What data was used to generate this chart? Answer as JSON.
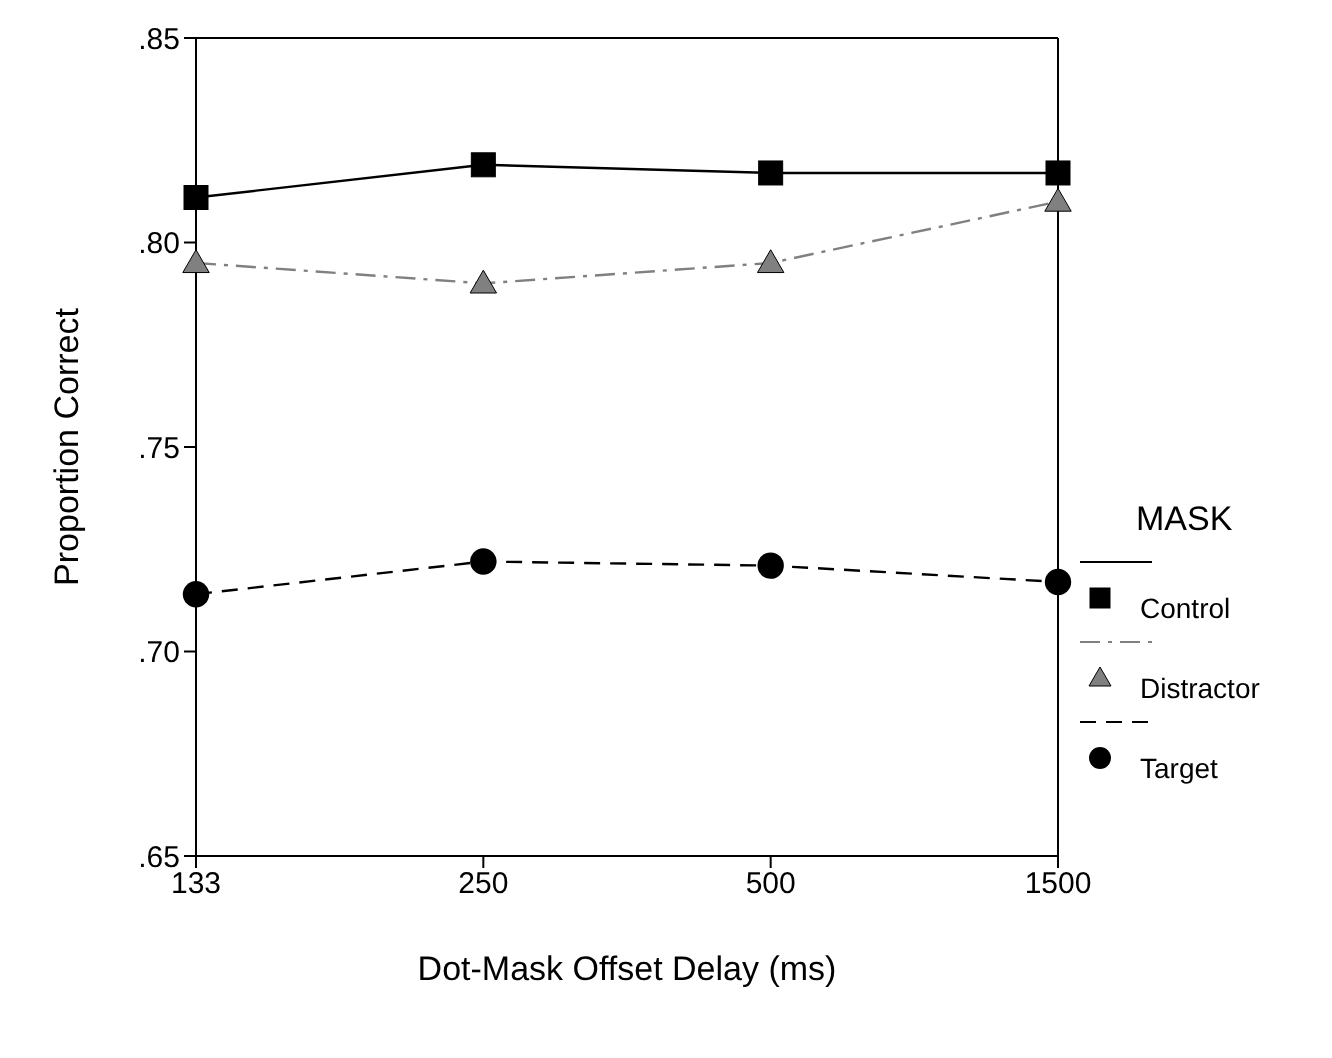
{
  "chart_data": {
    "type": "line",
    "xlabel": "Dot-Mask Offset Delay (ms)",
    "ylabel": "Proportion Correct",
    "legend_title": "MASK",
    "legend": "right",
    "grid": false,
    "categories": [
      "133",
      "250",
      "500",
      "1500"
    ],
    "ylim": [
      0.65,
      0.85
    ],
    "yticks": [
      {
        "value": 0.65,
        "label": ".65"
      },
      {
        "value": 0.7,
        "label": ".70"
      },
      {
        "value": 0.75,
        "label": ".75"
      },
      {
        "value": 0.8,
        "label": ".80"
      },
      {
        "value": 0.85,
        "label": ".85"
      }
    ],
    "series": [
      {
        "name": "Control",
        "color": "#000000",
        "marker": "square",
        "line_style": "solid",
        "values": [
          0.811,
          0.819,
          0.817,
          0.817
        ]
      },
      {
        "name": "Distractor",
        "color": "#808080",
        "marker": "triangle",
        "line_style": "dashdot",
        "values": [
          0.795,
          0.79,
          0.795,
          0.81
        ]
      },
      {
        "name": "Target",
        "color": "#000000",
        "marker": "circle",
        "line_style": "dashed",
        "values": [
          0.714,
          0.722,
          0.721,
          0.717
        ]
      }
    ]
  }
}
